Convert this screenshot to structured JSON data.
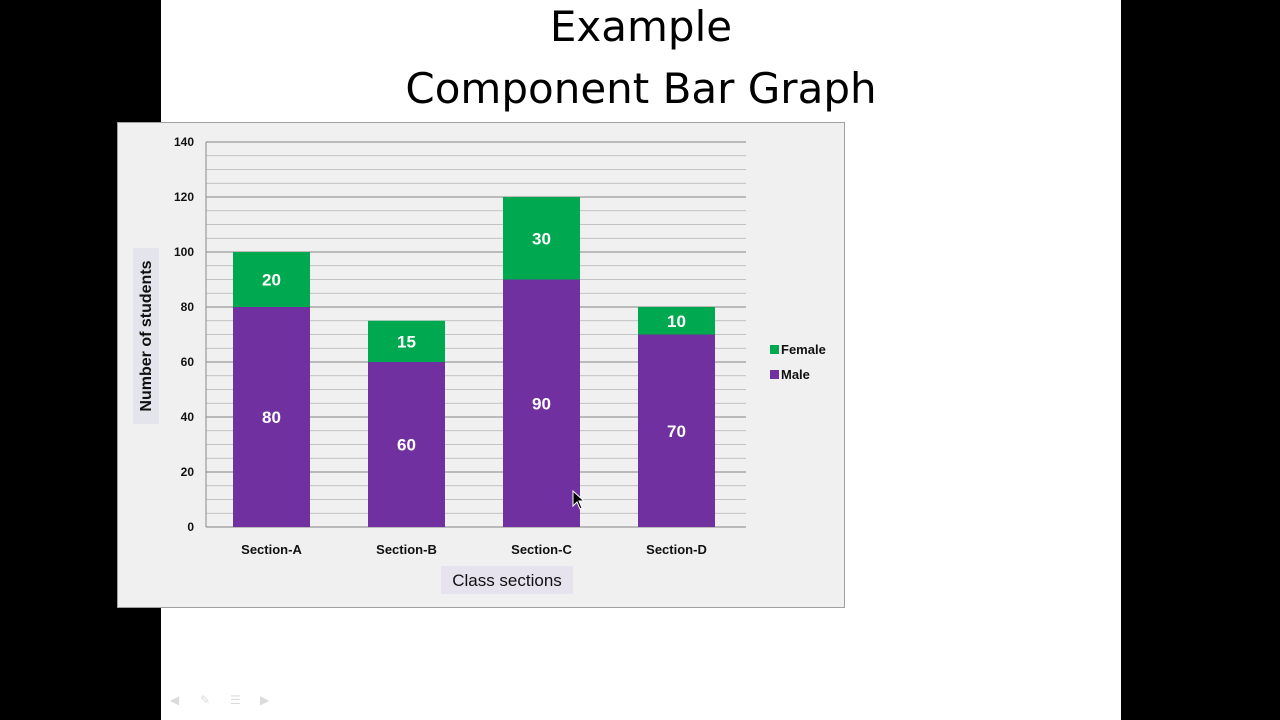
{
  "slide": {
    "title_line1": "Example",
    "title_line2": "Component Bar Graph"
  },
  "chart_data": {
    "type": "bar",
    "stacked": true,
    "categories": [
      "Section-A",
      "Section-B",
      "Section-C",
      "Section-D"
    ],
    "series": [
      {
        "name": "Male",
        "values": [
          80,
          60,
          90,
          70
        ],
        "color": "#7030a0"
      },
      {
        "name": "Female",
        "values": [
          20,
          15,
          30,
          10
        ],
        "color": "#00a84f"
      }
    ],
    "xlabel": "Class sections",
    "ylabel": "Number of students",
    "ylim": [
      0,
      140
    ],
    "yticks": [
      0,
      20,
      40,
      60,
      80,
      100,
      120,
      140
    ],
    "grid": true,
    "legend_position": "right"
  }
}
